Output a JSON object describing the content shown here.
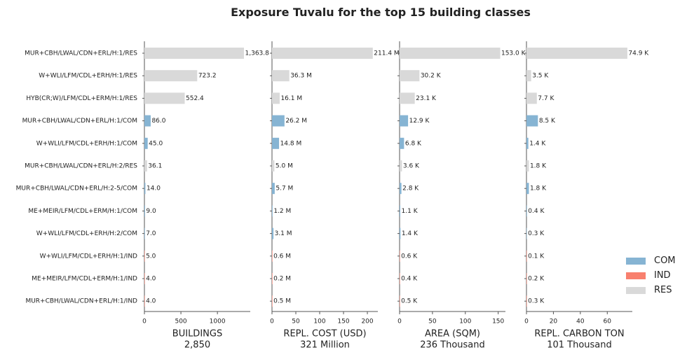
{
  "title": "Exposure Tuvalu for the top 15 building classes",
  "colors": {
    "COM": "#86b4d3",
    "IND": "#f8806e",
    "RES": "#d9d9d9",
    "axis": "#555555"
  },
  "legend": [
    {
      "name": "COM",
      "color": "#86b4d3"
    },
    {
      "name": "IND",
      "color": "#f8806e"
    },
    {
      "name": "RES",
      "color": "#d9d9d9"
    }
  ],
  "chart_data": {
    "type": "bar",
    "orientation": "horizontal",
    "categories": [
      "MUR+CBH/LWAL/CDN+ERL/H:1/RES",
      "W+WLI/LFM/CDL+ERH/H:1/RES",
      "HYB(CR;W)/LFM/CDL+ERM/H:1/RES",
      "MUR+CBH/LWAL/CDN+ERL/H:1/COM",
      "W+WLI/LFM/CDL+ERH/H:1/COM",
      "MUR+CBH/LWAL/CDN+ERL/H:2/RES",
      "MUR+CBH/LWAL/CDN+ERL/H:2-5/COM",
      "ME+MEIR/LFM/CDL+ERM/H:1/COM",
      "W+WLI/LFM/CDL+ERH/H:2/COM",
      "W+WLI/LFM/CDL+ERH/H:1/IND",
      "ME+MEIR/LFM/CDL+ERM/H:1/IND",
      "MUR+CBH/LWAL/CDN+ERL/H:1/IND"
    ],
    "occupancy": [
      "RES",
      "RES",
      "RES",
      "COM",
      "COM",
      "RES",
      "COM",
      "COM",
      "COM",
      "IND",
      "IND",
      "IND"
    ],
    "panels": [
      {
        "xlabel": "BUILDINGS",
        "total": "2,850",
        "values": [
          1363.8,
          723.2,
          552.4,
          86.0,
          45.0,
          36.1,
          14.0,
          9.0,
          7.0,
          5.0,
          4.0,
          4.0
        ],
        "labels": [
          "1,363.8",
          "723.2",
          "552.4",
          "86.0",
          "45.0",
          "36.1",
          "14.0",
          "9.0",
          "7.0",
          "5.0",
          "4.0",
          "4.0"
        ],
        "xlim": [
          0,
          1450
        ],
        "ticks": [
          0,
          500,
          1000
        ]
      },
      {
        "xlabel": "REPL. COST (USD)",
        "total": "321 Million",
        "values": [
          211.4,
          36.3,
          16.1,
          26.2,
          14.8,
          5.0,
          5.7,
          1.2,
          3.1,
          0.6,
          0.2,
          0.5
        ],
        "labels": [
          "211.4 M",
          "36.3 M",
          "16.1 M",
          "26.2 M",
          "14.8 M",
          "5.0 M",
          "5.7 M",
          "1.2 M",
          "3.1 M",
          "0.6 M",
          "0.2 M",
          "0.5 M"
        ],
        "xlim": [
          0,
          222
        ],
        "ticks": [
          0,
          50,
          100,
          150,
          200
        ]
      },
      {
        "xlabel": "AREA (SQM)",
        "total": "236 Thousand",
        "values": [
          153.0,
          30.2,
          23.1,
          12.9,
          6.8,
          3.6,
          2.8,
          1.1,
          1.4,
          0.6,
          0.4,
          0.5
        ],
        "labels": [
          "153.0 K",
          "30.2 K",
          "23.1 K",
          "12.9 K",
          "6.8 K",
          "3.6 K",
          "2.8 K",
          "1.1 K",
          "1.4 K",
          "0.6 K",
          "0.4 K",
          "0.5 K"
        ],
        "xlim": [
          0,
          161
        ],
        "ticks": [
          0,
          50,
          100,
          150
        ]
      },
      {
        "xlabel": "REPL. CARBON TON",
        "total": "101 Thousand",
        "values": [
          74.9,
          3.5,
          7.7,
          8.5,
          1.4,
          1.8,
          1.8,
          0.4,
          0.3,
          0.1,
          0.2,
          0.3
        ],
        "labels": [
          "74.9 K",
          "3.5 K",
          "7.7 K",
          "8.5 K",
          "1.4 K",
          "1.8 K",
          "1.8 K",
          "0.4 K",
          "0.3 K",
          "0.1 K",
          "0.2 K",
          "0.3 K"
        ],
        "xlim": [
          0,
          78.6
        ],
        "ticks": [
          0,
          20,
          40,
          60
        ]
      }
    ]
  }
}
